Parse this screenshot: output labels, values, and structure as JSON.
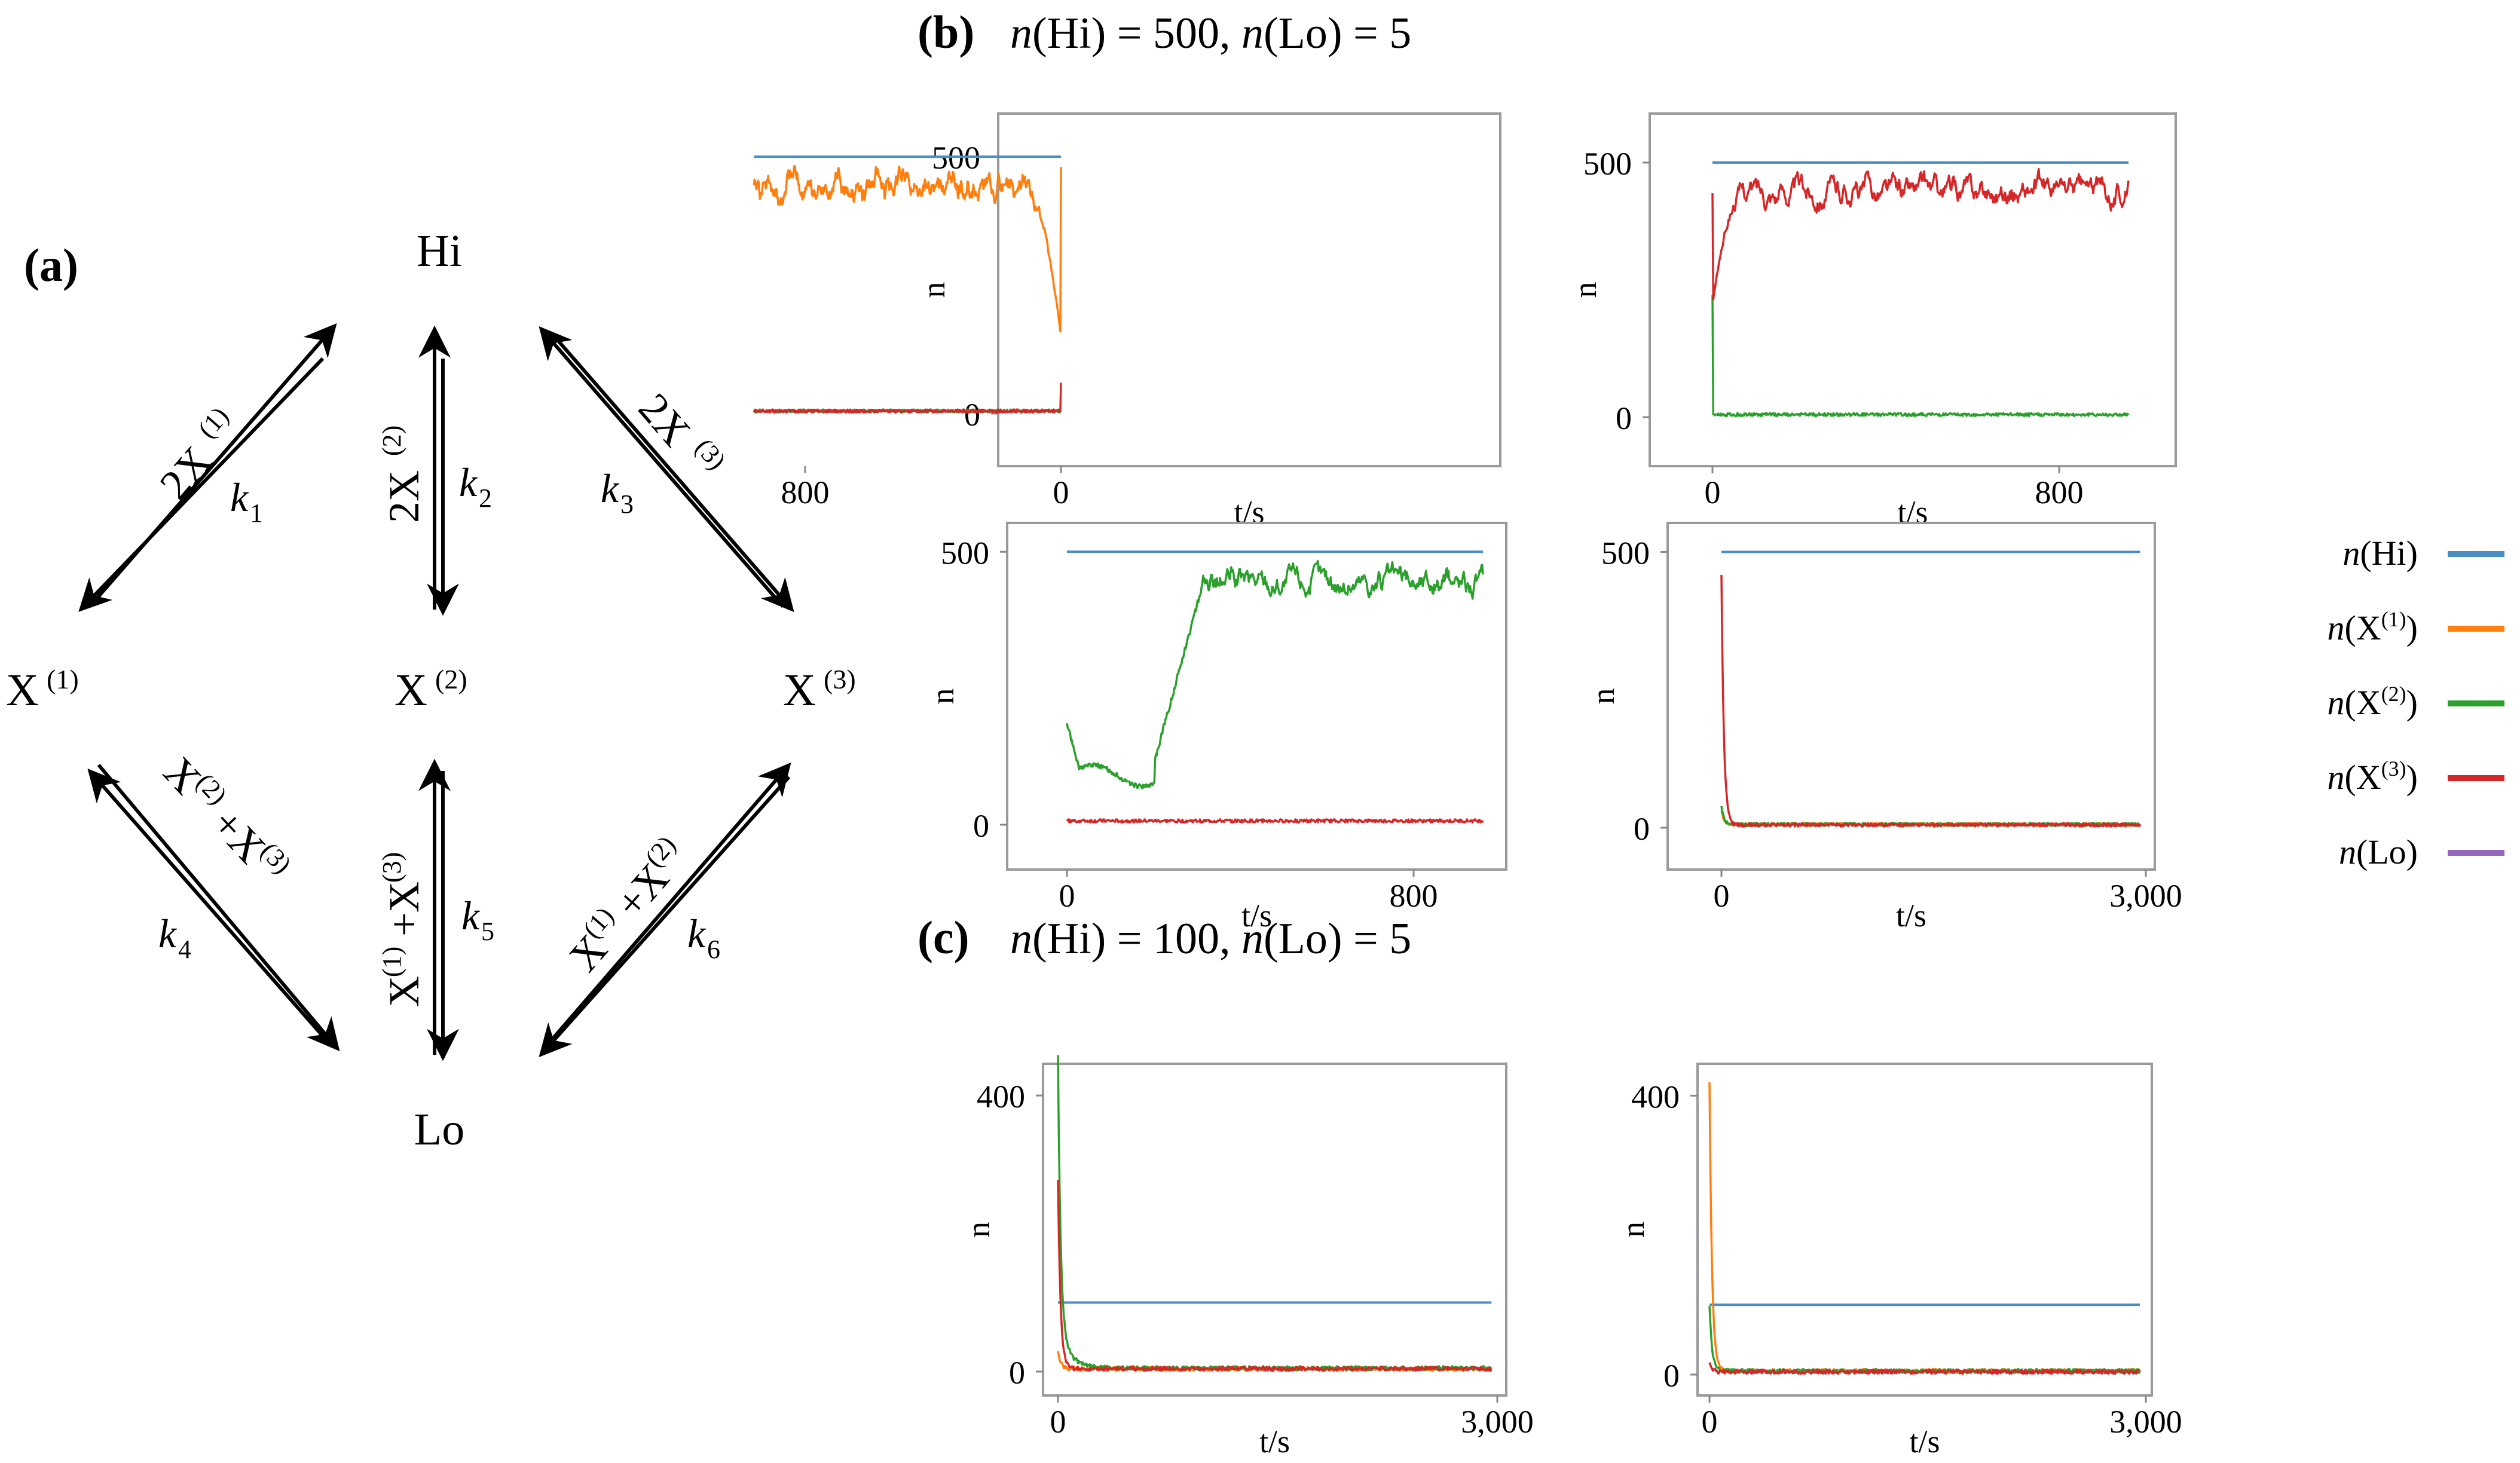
{
  "panel_a": {
    "label": "(a)",
    "nodes": {
      "hi": "Hi",
      "lo": "Lo",
      "x1": "X",
      "x1_sup": "(1)",
      "x2": "X",
      "x2_sup": "(2)",
      "x3": "X",
      "x3_sup": "(3)"
    },
    "reactions": [
      {
        "id": "r1",
        "catalyst": "2X",
        "sup": "(1)",
        "k": "k",
        "sub": "1"
      },
      {
        "id": "r2",
        "catalyst": "2X",
        "sup": "(2)",
        "k": "k",
        "sub": "2"
      },
      {
        "id": "r3",
        "catalyst": "2X",
        "sup": "(3)",
        "k": "k",
        "sub": "3"
      },
      {
        "id": "r4",
        "catalyst_a": "X",
        "sup_a": "(2)",
        "plus": "+",
        "catalyst_b": "X",
        "sup_b": "(3)",
        "k": "k",
        "sub": "4"
      },
      {
        "id": "r5",
        "catalyst_a": "X",
        "sup_a": "(1)",
        "plus": "+",
        "catalyst_b": "X",
        "sup_b": "(3)",
        "k": "k",
        "sub": "5"
      },
      {
        "id": "r6",
        "catalyst_a": "X",
        "sup_a": "(1)",
        "plus": "+",
        "catalyst_b": "X",
        "sup_b": "(2)",
        "k": "k",
        "sub": "6"
      }
    ]
  },
  "panel_b": {
    "label": "(b)",
    "n_italic_1": "n",
    "title_mid_1": "(Hi) = 500, ",
    "n_italic_2": "n",
    "title_mid_2": "(Lo) = 5"
  },
  "panel_c": {
    "label": "(c)",
    "n_italic_1": "n",
    "title_mid_1": "(Hi) = 100, ",
    "n_italic_2": "n",
    "title_mid_2": "(Lo) = 5"
  },
  "legend": [
    {
      "n": "n",
      "label": "(Hi)",
      "sup": "",
      "color": "#4a8fc4"
    },
    {
      "n": "n",
      "label": "(X",
      "sup": "(1)",
      "close": ")",
      "color": "#ff7f0e"
    },
    {
      "n": "n",
      "label": "(X",
      "sup": "(2)",
      "close": ")",
      "color": "#2ca02c"
    },
    {
      "n": "n",
      "label": "(X",
      "sup": "(3)",
      "close": ")",
      "color": "#d62728"
    },
    {
      "n": "n",
      "label": "(Lo)",
      "sup": "",
      "color": "#9467bd"
    }
  ],
  "chart_data": [
    {
      "id": "b1",
      "type": "line",
      "xlabel": "t/s",
      "ylabel": "n",
      "xlim": [
        0,
        1000
      ],
      "ylim": [
        0,
        520
      ],
      "xticks": [
        "0",
        "800"
      ],
      "yticks": [
        "0",
        "500"
      ],
      "series": [
        {
          "color": "#4a8fc4",
          "level": 500,
          "kind": "flat"
        },
        {
          "color": "#ff7f0e",
          "kind": "rise",
          "start": 150,
          "plateau": 440,
          "riseEnd": 60,
          "noise": 28,
          "t0spike": 480
        },
        {
          "color": "#2ca02c",
          "kind": "low",
          "level": 5,
          "noise": 3
        },
        {
          "color": "#d62728",
          "kind": "low",
          "level": 5,
          "noise": 3,
          "t0spike": 60
        }
      ]
    },
    {
      "id": "b2",
      "type": "line",
      "xlabel": "t/s",
      "ylabel": "n",
      "xlim": [
        0,
        1000
      ],
      "ylim": [
        0,
        520
      ],
      "xticks": [
        "0",
        "800"
      ],
      "yticks": [
        "0",
        "500"
      ],
      "series": [
        {
          "color": "#4a8fc4",
          "level": 500,
          "kind": "flat"
        },
        {
          "color": "#2ca02c",
          "kind": "low",
          "level": 5,
          "noise": 3,
          "t0spike": 240
        },
        {
          "color": "#d62728",
          "kind": "rise",
          "start": 220,
          "plateau": 445,
          "riseEnd": 40,
          "noise": 30,
          "t0spike": 440
        }
      ]
    },
    {
      "id": "b3",
      "type": "line",
      "xlabel": "t/s",
      "ylabel": "n",
      "xlim": [
        0,
        1000
      ],
      "ylim": [
        0,
        520
      ],
      "xticks": [
        "0",
        "800"
      ],
      "yticks": [
        "0",
        "500"
      ],
      "series": [
        {
          "color": "#4a8fc4",
          "level": 500,
          "kind": "flat"
        },
        {
          "color": "#2ca02c",
          "kind": "lagrise",
          "start": 185,
          "dip": 90,
          "lagEnd": 110,
          "plateau": 445,
          "riseEnd": 170,
          "noise": 28
        },
        {
          "color": "#d62728",
          "kind": "low",
          "level": 7,
          "noise": 3
        }
      ]
    },
    {
      "id": "b4",
      "type": "line",
      "xlabel": "t/s",
      "ylabel": "n",
      "xlim": [
        0,
        3000
      ],
      "ylim": [
        0,
        520
      ],
      "xticks": [
        "0",
        "3,000"
      ],
      "yticks": [
        "0",
        "500"
      ],
      "series": [
        {
          "color": "#4a8fc4",
          "level": 500,
          "kind": "flat"
        },
        {
          "color": "#ff7f0e",
          "kind": "decay",
          "spike": 30,
          "level": 6,
          "noise": 3
        },
        {
          "color": "#2ca02c",
          "kind": "decay",
          "spike": 40,
          "level": 6,
          "noise": 3
        },
        {
          "color": "#d62728",
          "kind": "decay",
          "spike": 460,
          "level": 5,
          "noise": 3
        }
      ]
    },
    {
      "id": "c1",
      "type": "line",
      "xlabel": "t/s",
      "ylabel": "n",
      "xlim": [
        0,
        3000
      ],
      "ylim": [
        0,
        420
      ],
      "xticks": [
        "0",
        "3,000"
      ],
      "yticks": [
        "0",
        "400"
      ],
      "series": [
        {
          "color": "#4a8fc4",
          "level": 100,
          "kind": "flat"
        },
        {
          "color": "#ff7f0e",
          "kind": "decay",
          "spike": 30,
          "level": 4,
          "noise": 3
        },
        {
          "color": "#2ca02c",
          "kind": "decay",
          "spike": 390,
          "level": 5,
          "noise": 3,
          "tail": 70
        },
        {
          "color": "#d62728",
          "kind": "decay",
          "spike": 280,
          "level": 4,
          "noise": 3
        }
      ]
    },
    {
      "id": "c2",
      "type": "line",
      "xlabel": "t/s",
      "ylabel": "n",
      "xlim": [
        0,
        3000
      ],
      "ylim": [
        0,
        420
      ],
      "xticks": [
        "0",
        "3,000"
      ],
      "yticks": [
        "0",
        "400"
      ],
      "series": [
        {
          "color": "#4a8fc4",
          "level": 100,
          "kind": "flat"
        },
        {
          "color": "#ff7f0e",
          "kind": "decay",
          "spike": 420,
          "level": 5,
          "noise": 3
        },
        {
          "color": "#2ca02c",
          "kind": "decay",
          "spike": 100,
          "level": 5,
          "noise": 3
        },
        {
          "color": "#d62728",
          "kind": "decay",
          "spike": 20,
          "level": 4,
          "noise": 3
        }
      ]
    }
  ]
}
